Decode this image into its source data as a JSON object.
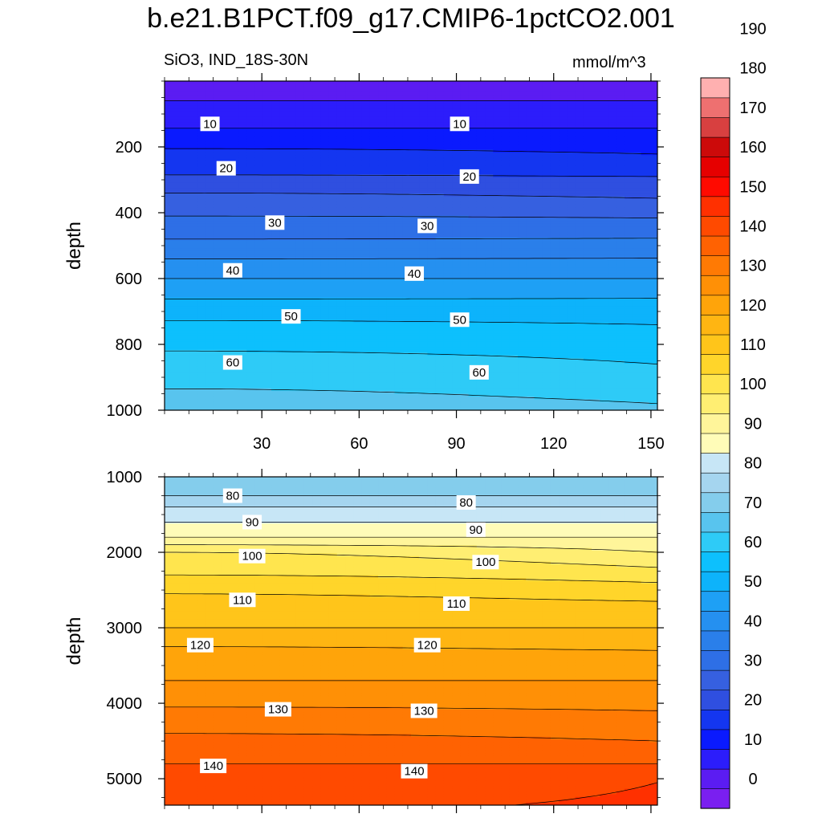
{
  "title": "b.e21.B1PCT.f09_g17.CMIP6-1pctCO2.001",
  "subtitle_left": "SiO3, IND_18S-30N",
  "subtitle_right": "mmol/m^3",
  "colors": {
    "levels": [
      "#7a1ff0",
      "#5b1cf2",
      "#2c1dfb",
      "#0a1afe",
      "#1436f0",
      "#2f4fe0",
      "#3660e0",
      "#2e6fe6",
      "#2a7fea",
      "#2590f0",
      "#1ea0f5",
      "#0db3fb",
      "#0dc0fd",
      "#2ecbf7",
      "#58c4ee",
      "#84cdec",
      "#a5d5ef",
      "#c7e6f6",
      "#fffcb8",
      "#fff59a",
      "#ffee72",
      "#ffe54e",
      "#ffd52a",
      "#ffc51a",
      "#ffb512",
      "#ffa40a",
      "#ff9006",
      "#ff7a04",
      "#ff6202",
      "#ff4a00",
      "#ff3000",
      "#ff0a00",
      "#e60000",
      "#cc0a0a",
      "#d84040",
      "#ee7070",
      "#ffb0b0"
    ]
  },
  "chart_data": [
    {
      "type": "contour",
      "panel": "upper",
      "title": "SiO3, IND_18S-30N",
      "units": "mmol/m^3",
      "ylabel": "depth",
      "xlabel": "",
      "xlim": [
        0,
        152
      ],
      "ylim": [
        1000,
        0
      ],
      "xticks": [
        30,
        60,
        90,
        120,
        150
      ],
      "yticks": [
        200,
        400,
        600,
        800,
        1000
      ],
      "contour_interval": 5,
      "depth_profile_west": [
        [
          0,
          2
        ],
        [
          60,
          5
        ],
        [
          110,
          8
        ],
        [
          160,
          11
        ],
        [
          205,
          15
        ],
        [
          255,
          18
        ],
        [
          300,
          21
        ],
        [
          340,
          25
        ],
        [
          410,
          30
        ],
        [
          480,
          35
        ],
        [
          540,
          40
        ],
        [
          600,
          45
        ],
        [
          650,
          49
        ],
        [
          710,
          54
        ],
        [
          780,
          58
        ],
        [
          860,
          62
        ],
        [
          960,
          66
        ],
        [
          1000,
          68
        ]
      ],
      "depth_profile_east": [
        [
          0,
          2
        ],
        [
          60,
          5
        ],
        [
          110,
          8
        ],
        [
          160,
          11
        ],
        [
          205,
          14
        ],
        [
          255,
          17
        ],
        [
          290,
          20
        ],
        [
          320,
          22
        ],
        [
          380,
          27
        ],
        [
          440,
          32
        ],
        [
          490,
          36
        ],
        [
          550,
          41
        ],
        [
          600,
          45
        ],
        [
          660,
          50
        ],
        [
          720,
          54
        ],
        [
          780,
          57
        ],
        [
          860,
          60
        ],
        [
          960,
          64
        ],
        [
          1000,
          66
        ]
      ],
      "contour_labels": [
        {
          "text": "10",
          "x": 14,
          "y": 130
        },
        {
          "text": "10",
          "x": 91,
          "y": 130
        },
        {
          "text": "20",
          "x": 19,
          "y": 265
        },
        {
          "text": "20",
          "x": 94,
          "y": 290
        },
        {
          "text": "30",
          "x": 34,
          "y": 430
        },
        {
          "text": "30",
          "x": 81,
          "y": 440
        },
        {
          "text": "40",
          "x": 21,
          "y": 575
        },
        {
          "text": "40",
          "x": 77,
          "y": 585
        },
        {
          "text": "50",
          "x": 39,
          "y": 715
        },
        {
          "text": "50",
          "x": 91,
          "y": 725
        },
        {
          "text": "60",
          "x": 21,
          "y": 855
        },
        {
          "text": "60",
          "x": 97,
          "y": 885
        }
      ]
    },
    {
      "type": "contour",
      "panel": "lower",
      "ylabel": "depth",
      "xlim": [
        0,
        152
      ],
      "ylim": [
        5350,
        1000
      ],
      "yticks": [
        1000,
        2000,
        3000,
        4000,
        5000
      ],
      "contour_interval": 5,
      "depth_profile_west": [
        [
          1000,
          70
        ],
        [
          1250,
          75
        ],
        [
          1400,
          80
        ],
        [
          1600,
          85
        ],
        [
          1800,
          90
        ],
        [
          2000,
          100
        ],
        [
          2300,
          105
        ],
        [
          2550,
          110
        ],
        [
          3000,
          115
        ],
        [
          3250,
          120
        ],
        [
          3700,
          125
        ],
        [
          4050,
          130
        ],
        [
          4400,
          135
        ],
        [
          4800,
          140
        ],
        [
          5350,
          144
        ]
      ],
      "depth_profile_east": [
        [
          1000,
          70
        ],
        [
          1250,
          75
        ],
        [
          1400,
          80
        ],
        [
          1600,
          85
        ],
        [
          1800,
          90
        ],
        [
          2000,
          95
        ],
        [
          2200,
          100
        ],
        [
          2400,
          105
        ],
        [
          2650,
          110
        ],
        [
          3000,
          115
        ],
        [
          3300,
          120
        ],
        [
          3700,
          125
        ],
        [
          4100,
          130
        ],
        [
          4500,
          135
        ],
        [
          4800,
          140
        ],
        [
          5050,
          145
        ],
        [
          5350,
          146
        ]
      ],
      "contour_labels": [
        {
          "text": "80",
          "x": 21,
          "y": 1250
        },
        {
          "text": "80",
          "x": 93,
          "y": 1340
        },
        {
          "text": "90",
          "x": 27,
          "y": 1600
        },
        {
          "text": "90",
          "x": 96,
          "y": 1700
        },
        {
          "text": "100",
          "x": 27,
          "y": 2050
        },
        {
          "text": "100",
          "x": 99,
          "y": 2130
        },
        {
          "text": "110",
          "x": 24,
          "y": 2630
        },
        {
          "text": "110",
          "x": 90,
          "y": 2680
        },
        {
          "text": "120",
          "x": 11,
          "y": 3230
        },
        {
          "text": "120",
          "x": 81,
          "y": 3230
        },
        {
          "text": "130",
          "x": 35,
          "y": 4080
        },
        {
          "text": "130",
          "x": 80,
          "y": 4100
        },
        {
          "text": "140",
          "x": 15,
          "y": 4830
        },
        {
          "text": "140",
          "x": 77,
          "y": 4900
        }
      ]
    }
  ],
  "colorbar": {
    "labels": [
      "0",
      "10",
      "20",
      "30",
      "40",
      "50",
      "60",
      "70",
      "80",
      "90",
      "100",
      "110",
      "120",
      "130",
      "140",
      "150",
      "160",
      "170",
      "180",
      "190"
    ],
    "min": -5,
    "max": 195
  }
}
